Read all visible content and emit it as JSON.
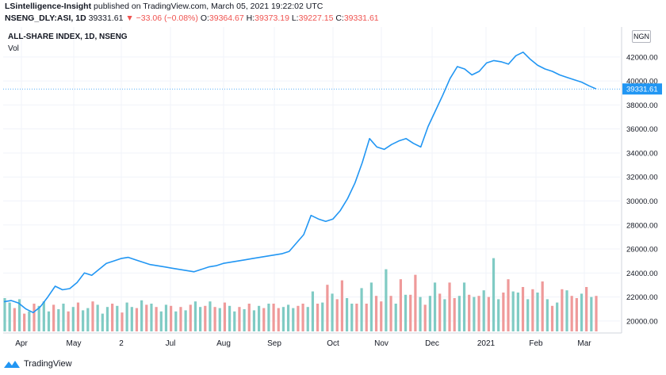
{
  "header": {
    "publisher": "LSintelligence-Insight",
    "published_text": "published on TradingView.com, March 05, 2021 19:22:02 UTC",
    "symbol_line": "NSENG_DLY:ASI, 1D",
    "last": "39331.61",
    "change": "▼ −33.06 (−0.08%)",
    "o_label": "O:",
    "o_value": "39364.67",
    "h_label": "H:",
    "h_value": "39373.19",
    "l_label": "L:",
    "l_value": "39227.15",
    "c_label": "C:",
    "c_value": "39331.61"
  },
  "legend": {
    "title": "ALL-SHARE INDEX, 1D, NSENG",
    "volume_label": "Vol"
  },
  "currency_badge": "NGN",
  "last_price_tag": "39331.61",
  "footer": {
    "brand": "TradingView",
    "icon": "tradingview-logo-icon"
  },
  "colors": {
    "line": "#2196f3",
    "vol_up": "#80cbc4",
    "vol_down": "#ef9a9a",
    "price_tag": "#2196f3",
    "grid": "#f0f3fa"
  },
  "chart_data": {
    "type": "line",
    "title": "ALL-SHARE INDEX, 1D, NSENG",
    "x_ticks": [
      "Apr",
      "May",
      "2",
      "Jul",
      "Aug",
      "Sep",
      "Oct",
      "Nov",
      "Dec",
      "2021",
      "Feb",
      "Mar"
    ],
    "y_ticks": [
      "20000.00",
      "22000.00",
      "24000.00",
      "26000.00",
      "28000.00",
      "30000.00",
      "32000.00",
      "34000.00",
      "36000.00",
      "38000.00",
      "40000.00",
      "42000.00"
    ],
    "ylim": [
      19000,
      44500
    ],
    "grid": true,
    "series": [
      {
        "values": [
          21600,
          21700,
          21500,
          21000,
          20700,
          21200,
          22000,
          22900,
          22600,
          22700,
          23200,
          24000,
          23800,
          24300,
          24800,
          25000,
          25200,
          25300,
          25100,
          24900,
          24700,
          24600,
          24500,
          24400,
          24300,
          24200,
          24100,
          24300,
          24500,
          24600,
          24800,
          24900,
          25000,
          25100,
          25200,
          25300,
          25400,
          25500,
          25600,
          25800,
          26500,
          27200,
          28800,
          28500,
          28300,
          28500,
          29200,
          30200,
          31500,
          33200,
          35200,
          34500,
          34300,
          34700,
          35000,
          35200,
          34800,
          34500,
          36200,
          37500,
          38800,
          40200,
          41200,
          41000,
          40500,
          40800,
          41500,
          41700,
          41600,
          41400,
          42100,
          42400,
          41800,
          41300,
          41000,
          40800,
          40500,
          40300,
          40100,
          39900,
          39600,
          39331.61
        ]
      }
    ],
    "volume": {
      "values": [
        3,
        2.6,
        2.1,
        2.9,
        1.6,
        1.8,
        2.5,
        2.3,
        2.7,
        1.8,
        2.4,
        2,
        2.5,
        1.8,
        2.2,
        2.6,
        1.9,
        2.1,
        2.7,
        2.4,
        1.6,
        2.2,
        2.5,
        2.3,
        1.7,
        2.6,
        2.2,
        2.1,
        2.8,
        2.4,
        2.5,
        2.2,
        1.8,
        2.4,
        2.3,
        1.8,
        2.2,
        1.9,
        2.4,
        2.7,
        2.2,
        2.3,
        2.7,
        2.2,
        2.1,
        2.6,
        2.3,
        1.8,
        2.2,
        2,
        2.5,
        1.9,
        2.3,
        2.1,
        2.5,
        2.5,
        2.1,
        2.2,
        2.4,
        2.1,
        2.3,
        2.5,
        2.2,
        3.6,
        2.5,
        2.6,
        4.2,
        3.4,
        2.9,
        4.6,
        3,
        2.5,
        2.5,
        3.9,
        2.5,
        4.4,
        3.2,
        2.7,
        5.6,
        3.2,
        2.5,
        4.7,
        3.3,
        3.3,
        5.1,
        3.1,
        2.4,
        3.2,
        4.4,
        3.4,
        2.9,
        4.4,
        3,
        3.2,
        4.4,
        3.3,
        3.1,
        3.2,
        3.7,
        3.1,
        6.6,
        2.9,
        3.5,
        4.7,
        3.6,
        3.5,
        4,
        2.9,
        3.8,
        3.5,
        4.5,
        2.9,
        2.3,
        2.6,
        3.8,
        3.7,
        3.2,
        3,
        3.4,
        4,
        3.1,
        3.2
      ],
      "up": [
        true,
        true,
        false,
        true,
        false,
        true,
        false,
        true,
        true,
        true,
        false,
        true,
        true,
        false,
        true,
        false,
        true,
        true,
        false,
        true,
        true,
        true,
        false,
        true,
        false,
        true,
        true,
        false,
        true,
        false,
        true,
        false,
        true,
        true,
        false,
        true,
        false,
        true,
        false,
        true,
        true,
        false,
        true,
        false,
        true,
        false,
        true,
        true,
        false,
        true,
        false,
        true,
        true,
        false,
        true,
        false,
        false,
        true,
        true,
        true,
        false,
        false,
        true,
        true,
        false,
        true,
        false,
        true,
        false,
        false,
        true,
        true,
        false,
        true,
        false,
        true,
        false,
        false,
        true,
        false,
        true,
        false,
        true,
        false,
        false,
        true,
        false,
        true,
        true,
        false,
        true,
        false,
        false,
        true,
        true,
        false,
        true,
        false,
        true,
        false,
        true,
        true,
        false,
        false,
        true,
        true,
        false,
        true,
        false,
        true,
        false,
        true,
        false,
        true,
        false,
        true,
        false,
        false,
        true,
        false,
        true,
        false
      ]
    }
  }
}
